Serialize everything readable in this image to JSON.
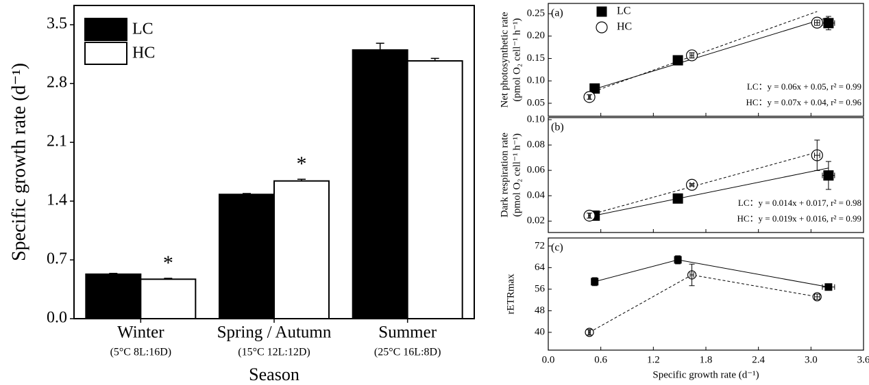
{
  "chart_data": [
    {
      "type": "bar",
      "ylabel": "Specific growth rate (d⁻¹)",
      "xlabel": "Season",
      "categories": [
        "Winter",
        "Spring / Autumn",
        "Summer"
      ],
      "category_notes": [
        "(5°C 8L:16D)",
        "(15°C 12L:12D)",
        "(25°C 16L:8D)"
      ],
      "series": [
        {
          "name": "LC",
          "color": "#000000",
          "values": [
            0.53,
            1.48,
            3.2
          ],
          "errors": [
            0.01,
            0.01,
            0.08
          ]
        },
        {
          "name": "HC",
          "color": "#ffffff",
          "values": [
            0.47,
            1.64,
            3.07
          ],
          "errors": [
            0.01,
            0.02,
            0.03
          ]
        }
      ],
      "annotations": [
        {
          "text": "*",
          "category": "Winter",
          "series": "HC"
        },
        {
          "text": "*",
          "category": "Spring / Autumn",
          "series": "HC"
        }
      ],
      "ylim": [
        0,
        3.73
      ],
      "yticks": [
        {
          "value": 0,
          "label": "0.0"
        },
        0.7,
        1.4,
        2.1,
        2.8,
        3.5
      ],
      "legend": "top-left"
    },
    {
      "type": "scatter",
      "panel": "(a)",
      "ylabel": [
        "Net photosynthetic rate",
        "(pmol O₂ cell⁻¹ h⁻¹)"
      ],
      "series": [
        {
          "name": "LC",
          "color": "#000000",
          "marker": "square",
          "marker_fill": "#000000",
          "line_style": "solid",
          "x": [
            0.53,
            1.48,
            3.2
          ],
          "x_errors": [
            0.01,
            0.01,
            0.07
          ],
          "values": [
            0.083,
            0.146,
            0.229
          ],
          "errors": [
            0.004,
            0.004,
            0.015
          ],
          "fit": {
            "slope": 0.06,
            "intercept": 0.05
          }
        },
        {
          "name": "HC",
          "color": "#000000",
          "marker": "circle",
          "marker_fill": "#ffffff",
          "line_style": "dashed",
          "x": [
            0.47,
            1.64,
            3.07
          ],
          "x_errors": [
            0.01,
            0.02,
            0.03
          ],
          "values": [
            0.064,
            0.157,
            0.23
          ],
          "errors": [
            0.005,
            0.006,
            0.006
          ],
          "fit": {
            "slope": 0.07,
            "intercept": 0.04
          }
        }
      ],
      "annotations": [
        "LC：y = 0.06x + 0.05, r² = 0.99",
        "HC：y = 0.07x + 0.04, r² = 0.96"
      ],
      "xlim": [
        0,
        3.6
      ],
      "ylim": [
        0.021,
        0.273
      ],
      "yticks": [
        0.05,
        {
          "value": 0.1,
          "label": "0.10"
        },
        0.15,
        {
          "value": 0.2,
          "label": "0.20"
        },
        0.25
      ],
      "legend": "top-left"
    },
    {
      "type": "scatter",
      "panel": "(b)",
      "ylabel": [
        "Dark respiration rate",
        "(pmol O₂ cell⁻¹ h⁻¹)"
      ],
      "series": [
        {
          "color": "#000000",
          "marker": "square",
          "marker_fill": "#000000",
          "line_style": "solid",
          "x": [
            0.53,
            1.48,
            3.2
          ],
          "x_errors": [
            0.01,
            0.01,
            0.07
          ],
          "values": [
            0.0243,
            0.0378,
            0.056
          ],
          "errors": [
            0.001,
            0.001,
            0.011
          ],
          "fit": {
            "slope": 0.014,
            "intercept": 0.017
          }
        },
        {
          "color": "#000000",
          "marker": "circle",
          "marker_fill": "#ffffff",
          "line_style": "dashed",
          "x": [
            0.47,
            1.64,
            3.07
          ],
          "x_errors": [
            0.01,
            0.02,
            0.03
          ],
          "values": [
            0.0243,
            0.0486,
            0.0719
          ],
          "errors": [
            0.002,
            0.001,
            0.012
          ],
          "fit": {
            "slope": 0.019,
            "intercept": 0.016
          }
        }
      ],
      "annotations": [
        "LC：y = 0.014x + 0.017, r² = 0.98",
        "HC：y = 0.019x + 0.016, r² = 0.99"
      ],
      "xlim": [
        0,
        3.6
      ],
      "ylim": [
        0.011,
        0.1016
      ],
      "yticks": [
        0.02,
        0.04,
        0.06,
        0.08,
        {
          "value": 0.1,
          "label": "0.10"
        }
      ]
    },
    {
      "type": "line",
      "panel": "(c)",
      "ylabel": [
        "rETRmax"
      ],
      "xlabel": "Specific growth rate (d⁻¹)",
      "series": [
        {
          "color": "#000000",
          "marker": "square",
          "marker_fill": "#000000",
          "line_style": "solid",
          "x": [
            0.53,
            1.48,
            3.2
          ],
          "x_errors": [
            0.01,
            0.01,
            0.07
          ],
          "values": [
            58.8,
            66.9,
            56.8
          ],
          "errors": [
            1.5,
            1.5,
            1
          ]
        },
        {
          "color": "#000000",
          "marker": "circle",
          "marker_fill": "#ffffff",
          "line_style": "dashed",
          "x": [
            0.47,
            1.64,
            3.07
          ],
          "x_errors": [
            0.01,
            0.02,
            0.03
          ],
          "values": [
            40,
            61.3,
            53.2
          ],
          "errors": [
            1,
            4,
            1
          ]
        }
      ],
      "xlim": [
        0,
        3.6
      ],
      "ylim": [
        33.4,
        75
      ],
      "xticks": [
        {
          "value": 0,
          "label": "0.0"
        },
        0.6,
        1.2,
        1.8,
        2.4,
        {
          "value": 3,
          "label": "3.0"
        },
        3.6
      ],
      "yticks": [
        40,
        48,
        56,
        64,
        72
      ]
    }
  ]
}
